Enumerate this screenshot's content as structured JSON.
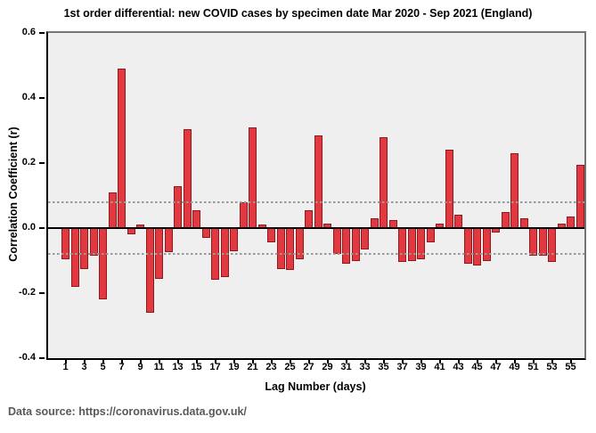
{
  "title": "1st order differential: new COVID cases by specimen date Mar 2020 - Sep 2021 (England)",
  "footer": {
    "text": "Data source: https://coronavirus.data.gov.uk/"
  },
  "chart_data": {
    "type": "bar",
    "title": "1st order differential: new COVID cases by specimen date Mar 2020 - Sep 2021 (England)",
    "xlabel": "Lag Number (days)",
    "ylabel": "Correlation Coefficient (r)",
    "x": [
      1,
      2,
      3,
      4,
      5,
      6,
      7,
      8,
      9,
      10,
      11,
      12,
      13,
      14,
      15,
      16,
      17,
      18,
      19,
      20,
      21,
      22,
      23,
      24,
      25,
      26,
      27,
      28,
      29,
      30,
      31,
      32,
      33,
      34,
      35,
      36,
      37,
      38,
      39,
      40,
      41,
      42,
      43,
      44,
      45,
      46,
      47,
      48,
      49,
      50,
      51,
      52,
      53,
      54,
      55,
      56
    ],
    "values": [
      -0.095,
      -0.18,
      -0.125,
      -0.085,
      -0.22,
      0.11,
      0.49,
      -0.02,
      0.01,
      -0.26,
      -0.155,
      -0.075,
      0.13,
      0.305,
      0.055,
      -0.03,
      -0.16,
      -0.15,
      -0.07,
      0.08,
      0.31,
      0.01,
      -0.045,
      -0.125,
      -0.13,
      -0.095,
      0.055,
      0.285,
      0.015,
      -0.08,
      -0.11,
      -0.1,
      -0.065,
      0.03,
      0.28,
      0.025,
      -0.105,
      -0.1,
      -0.095,
      -0.045,
      0.015,
      0.24,
      0.04,
      -0.11,
      -0.115,
      -0.1,
      -0.015,
      0.05,
      0.23,
      0.03,
      -0.085,
      -0.085,
      -0.105,
      0.015,
      0.035,
      0.195
    ],
    "ylim": [
      -0.4,
      0.6
    ],
    "yticks": [
      0.6,
      0.4,
      0.2,
      0.0,
      -0.2,
      -0.4
    ],
    "xticks": [
      1,
      3,
      5,
      7,
      9,
      11,
      13,
      15,
      17,
      19,
      21,
      23,
      25,
      27,
      29,
      31,
      33,
      35,
      37,
      39,
      41,
      43,
      45,
      47,
      49,
      51,
      53,
      55
    ],
    "confidence_upper": 0.08,
    "confidence_lower": -0.08,
    "grid": false,
    "legend": "none",
    "colors": {
      "bar_fill": "#e2383f",
      "bar_border": "#8c1a1e",
      "plot_background": "#efefef",
      "confidence_line": "#9a9a9a",
      "zero_line": "#000000",
      "frame": "#757575",
      "footer_text": "#595959"
    }
  }
}
